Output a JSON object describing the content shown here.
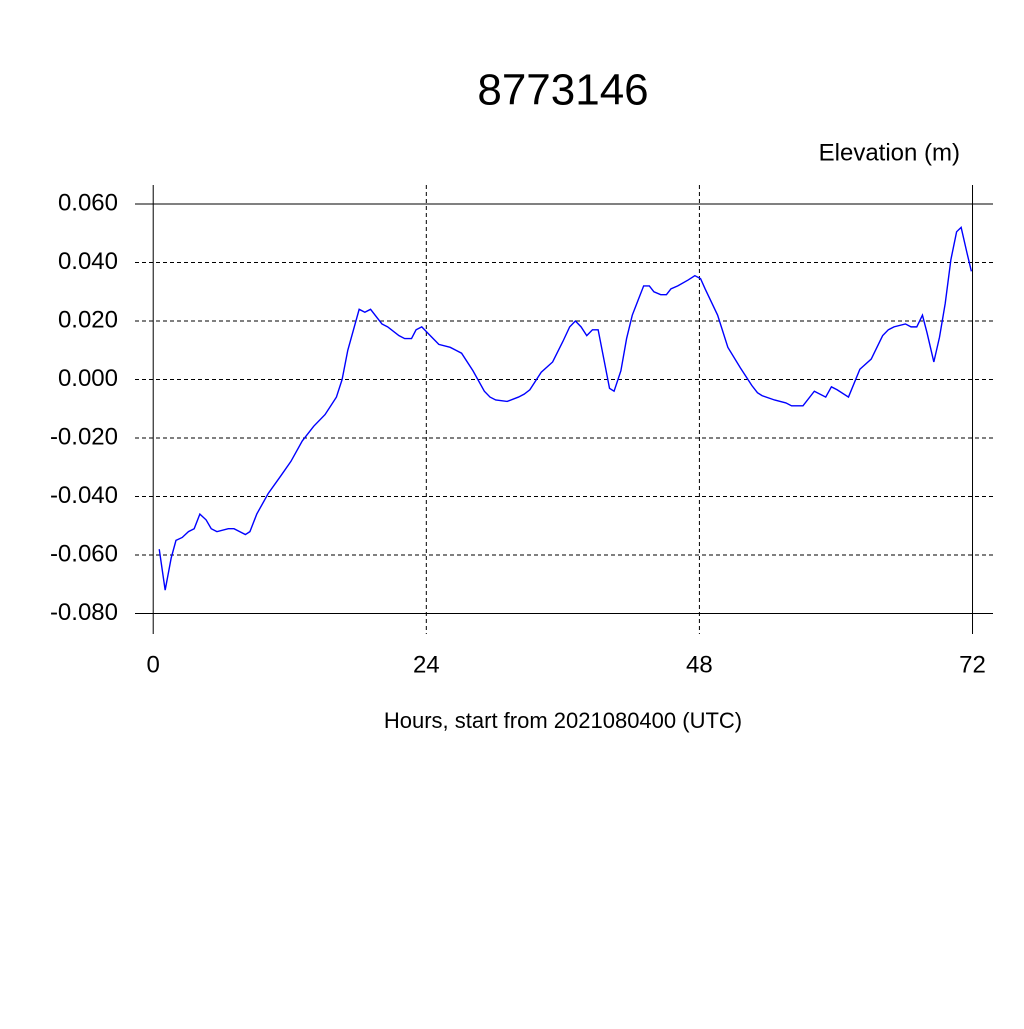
{
  "chart_data": {
    "type": "line",
    "title": "8773146",
    "y_label": "Elevation (m)",
    "x_label": "Hours, start from 2021080400 (UTC)",
    "x": [
      0.53,
      1.05,
      1.58,
      2.0,
      2.55,
      3.1,
      3.6,
      4.1,
      4.65,
      5.1,
      5.6,
      6.6,
      7.1,
      7.6,
      8.1,
      8.5,
      9.1,
      10.1,
      11.2,
      12.1,
      13.1,
      14.1,
      15.1,
      15.6,
      16.1,
      16.6,
      17.1,
      18.1,
      18.6,
      19.1,
      20.1,
      20.6,
      21.6,
      22.1,
      22.7,
      23.1,
      23.6,
      24.1,
      25.1,
      26.1,
      26.6,
      27.1,
      28.1,
      29.1,
      29.6,
      30.1,
      31.1,
      32.1,
      32.6,
      33.1,
      34.1,
      35.1,
      36.0,
      36.6,
      37.1,
      37.6,
      38.1,
      38.6,
      39.1,
      39.6,
      40.1,
      40.5,
      41.1,
      41.6,
      42.1,
      42.6,
      43.1,
      43.6,
      44.0,
      44.6,
      45.1,
      45.5,
      46.1,
      47.0,
      47.6,
      48.1,
      48.5,
      49.6,
      50.5,
      51.6,
      52.6,
      53.1,
      53.5,
      54.6,
      55.6,
      56.1,
      57.1,
      58.1,
      59.1,
      59.6,
      60.1,
      61.1,
      62.1,
      63.1,
      64.1,
      64.6,
      65.1,
      66.1,
      66.6,
      67.1,
      67.6,
      68.0,
      68.6,
      69.1,
      69.6,
      70.1,
      70.6,
      71.0,
      71.5,
      71.9
    ],
    "series": [
      {
        "color": "#0000ff",
        "values": [
          -0.058,
          -0.072,
          -0.061,
          -0.055,
          -0.054,
          -0.052,
          -0.051,
          -0.046,
          -0.048,
          -0.051,
          -0.052,
          -0.051,
          -0.051,
          -0.052,
          -0.053,
          -0.052,
          -0.046,
          -0.039,
          -0.033,
          -0.028,
          -0.021,
          -0.016,
          -0.012,
          -0.009,
          -0.006,
          0.0,
          0.01,
          0.024,
          0.023,
          0.024,
          0.019,
          0.018,
          0.015,
          0.014,
          0.014,
          0.017,
          0.018,
          0.016,
          0.012,
          0.011,
          0.01,
          0.009,
          0.003,
          -0.004,
          -0.006,
          -0.007,
          -0.0075,
          -0.006,
          -0.005,
          -0.0035,
          0.0025,
          0.006,
          0.013,
          0.018,
          0.02,
          0.018,
          0.015,
          0.017,
          0.017,
          0.007,
          -0.003,
          -0.004,
          0.003,
          0.014,
          0.022,
          0.027,
          0.032,
          0.032,
          0.03,
          0.029,
          0.029,
          0.031,
          0.032,
          0.034,
          0.0355,
          0.0345,
          0.031,
          0.022,
          0.011,
          0.004,
          -0.002,
          -0.0045,
          -0.0055,
          -0.007,
          -0.008,
          -0.009,
          -0.009,
          -0.004,
          -0.006,
          -0.0025,
          -0.0035,
          -0.006,
          0.0035,
          0.007,
          0.015,
          0.017,
          0.018,
          0.019,
          0.018,
          0.018,
          0.022,
          0.016,
          0.006,
          0.0145,
          0.026,
          0.041,
          0.0505,
          0.052,
          0.0435,
          0.037
        ]
      }
    ],
    "xlim": [
      -1.6,
      73.8
    ],
    "xticks": [
      0,
      24,
      48,
      72
    ],
    "ylim": [
      -0.087,
      0.0665
    ],
    "yticks": [
      {
        "value": -0.08,
        "label": "-0.080"
      },
      {
        "value": -0.06,
        "label": "-0.060"
      },
      {
        "value": -0.04,
        "label": "-0.040"
      },
      {
        "value": -0.02,
        "label": "-0.020"
      },
      {
        "value": 0,
        "label": "0.000"
      },
      {
        "value": 0.02,
        "label": "0.020"
      },
      {
        "value": 0.04,
        "label": "0.040"
      },
      {
        "value": 0.06,
        "label": "0.060"
      }
    ],
    "grid": true
  }
}
